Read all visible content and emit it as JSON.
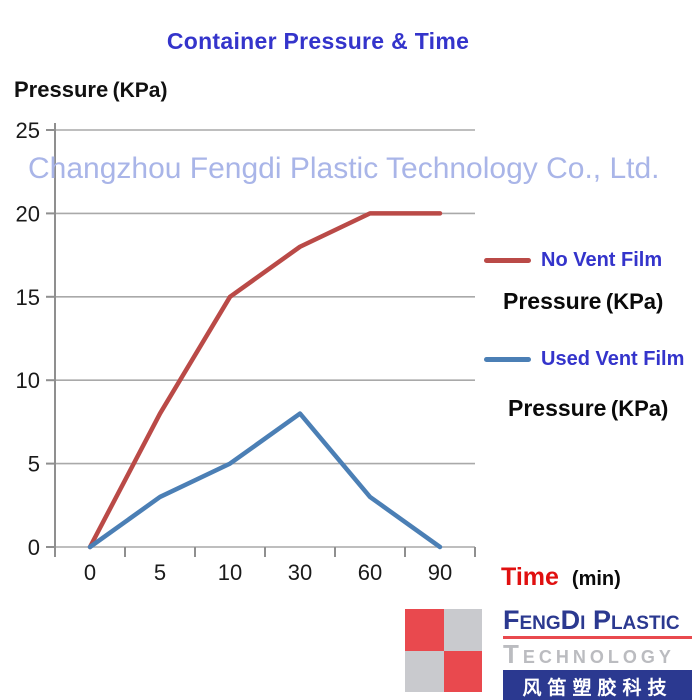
{
  "title": "Container Pressure & Time",
  "watermark": "Changzhou Fengdi Plastic Technology Co., Ltd.",
  "y_axis": {
    "title_main": "Pressure",
    "title_unit": "(KPa)"
  },
  "x_axis": {
    "title_main": "Time",
    "title_unit": "(min)"
  },
  "legend": {
    "label_color": "#3434CB",
    "entries": [
      {
        "label": "No Vent Film",
        "sublabel_main": "Pressure",
        "sublabel_unit": "(KPa)"
      },
      {
        "label": "Used Vent Film",
        "sublabel_main": "Pressure",
        "sublabel_unit": "(KPa)"
      }
    ]
  },
  "chart_data": {
    "type": "line",
    "title": "Container Pressure & Time",
    "xlabel": "Time (min)",
    "ylabel": "Pressure (KPa)",
    "categories": [
      "0",
      "5",
      "10",
      "30",
      "60",
      "90"
    ],
    "series": [
      {
        "name": "No Vent Film",
        "color": "#BA4A47",
        "values": [
          0,
          8,
          15,
          18,
          20,
          20
        ]
      },
      {
        "name": "Used Vent Film",
        "color": "#4B7FB5",
        "values": [
          0,
          3,
          5,
          8,
          3,
          0
        ]
      }
    ],
    "ylim": [
      0,
      25
    ],
    "yticks": [
      0,
      5,
      10,
      15,
      20,
      25
    ],
    "grid": true,
    "legend_position": "right"
  },
  "colors": {
    "title": "#3434CB",
    "watermark": "#A9B5E8",
    "gridline": "#A9A9A9",
    "axis": "#8F8F8F",
    "time_label": "#E01010"
  },
  "logo": {
    "checker_colors": [
      "#E9494E",
      "#C9CACE",
      "#C9CACE",
      "#E9494E"
    ],
    "line1": "FengDi Plastic",
    "line2": "Technology",
    "line3": "风笛塑胶科技",
    "line1_color": "#2B3990",
    "line2_color": "#BBBCC0",
    "underline_color": "#E9494E",
    "banner_bg": "#2B3990"
  }
}
